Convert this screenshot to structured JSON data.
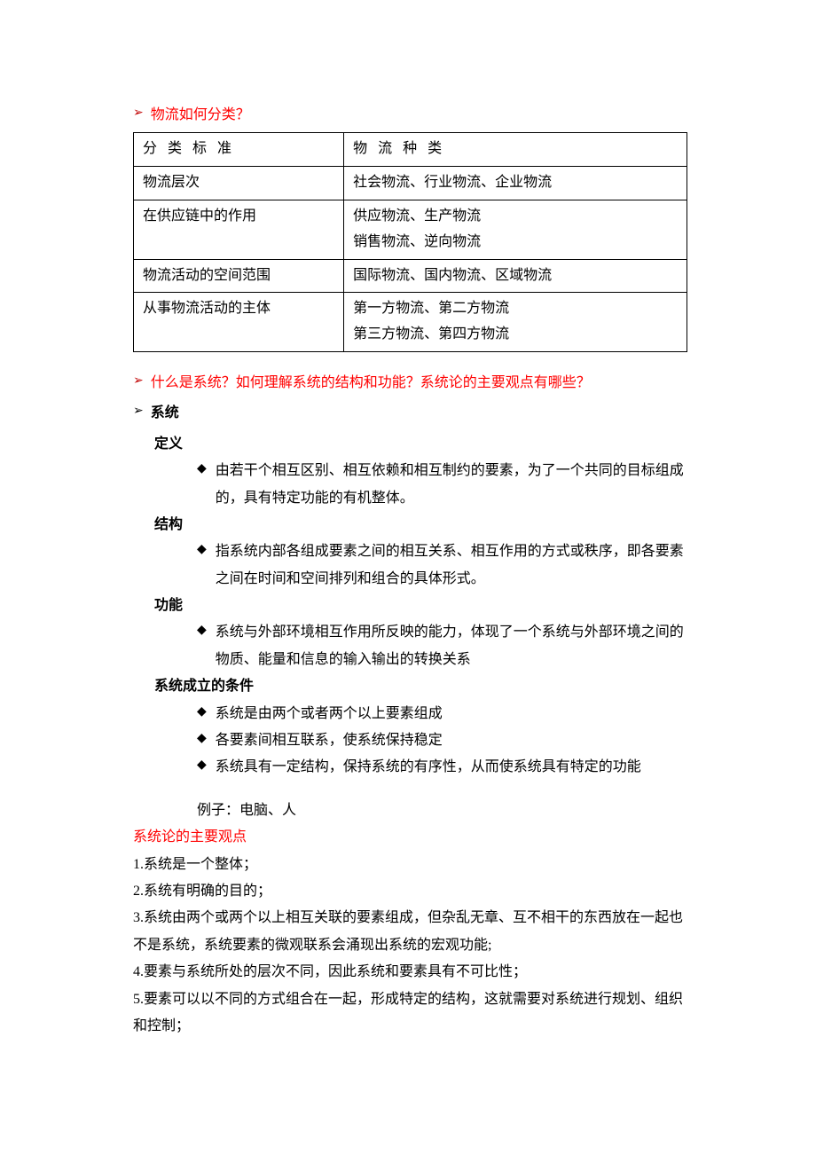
{
  "colors": {
    "arrow_red": "#c00000",
    "text_red": "#ff0000",
    "text_black": "#000000",
    "border": "#000000",
    "background": "#ffffff"
  },
  "typography": {
    "body_font": "SimSun",
    "body_size_pt": 12,
    "line_height": 1.9
  },
  "q1": {
    "title": "物流如何分类？",
    "table": {
      "columns": [
        "分 类 标 准",
        "物 流 种 类"
      ],
      "rows": [
        [
          "物流层次",
          "社会物流、行业物流、企业物流"
        ],
        [
          "在供应链中的作用",
          "供应物流、生产物流\n销售物流、逆向物流"
        ],
        [
          "物流活动的空间范围",
          "国际物流、国内物流、区域物流"
        ],
        [
          "从事物流活动的主体",
          "第一方物流、第二方物流\n第三方物流、第四方物流"
        ]
      ],
      "col_widths_pct": [
        38,
        62
      ]
    }
  },
  "q2": {
    "title": "什么是系统？如何理解系统的结构和功能？系统论的主要观点有哪些？",
    "system_label": "系统",
    "sections": {
      "definition": {
        "label": "定义",
        "items": [
          "由若干个相互区别、相互依赖和相互制约的要素，为了一个共同的目标组成的，具有特定功能的有机整体。"
        ]
      },
      "structure": {
        "label": "结构",
        "items": [
          "指系统内部各组成要素之间的相互关系、相互作用的方式或秩序，即各要素之间在时间和空间排列和组合的具体形式。"
        ]
      },
      "function": {
        "label": "功能",
        "items": [
          "系统与外部环境相互作用所反映的能力，体现了一个系统与外部环境之间的物质、能量和信息的输入输出的转换关系"
        ]
      },
      "conditions": {
        "label": "系统成立的条件",
        "items": [
          "系统是由两个或者两个以上要素组成",
          "各要素间相互联系，使系统保持稳定",
          "系统具有一定结构，保持系统的有序性，从而使系统具有特定的功能"
        ]
      }
    },
    "example": "例子：电脑、人",
    "viewpoints": {
      "label": "系统论的主要观点",
      "items": [
        "1.系统是一个整体；",
        "2.系统有明确的目的；",
        "3.系统由两个或两个以上相互关联的要素组成，但杂乱无章、互不相干的东西放在一起也不是系统，系统要素的微观联系会涌现出系统的宏观功能;",
        "4.要素与系统所处的层次不同，因此系统和要素具有不可比性；",
        "5.要素可以以不同的方式组合在一起，形成特定的结构，这就需要对系统进行规划、组织和控制；"
      ]
    }
  }
}
